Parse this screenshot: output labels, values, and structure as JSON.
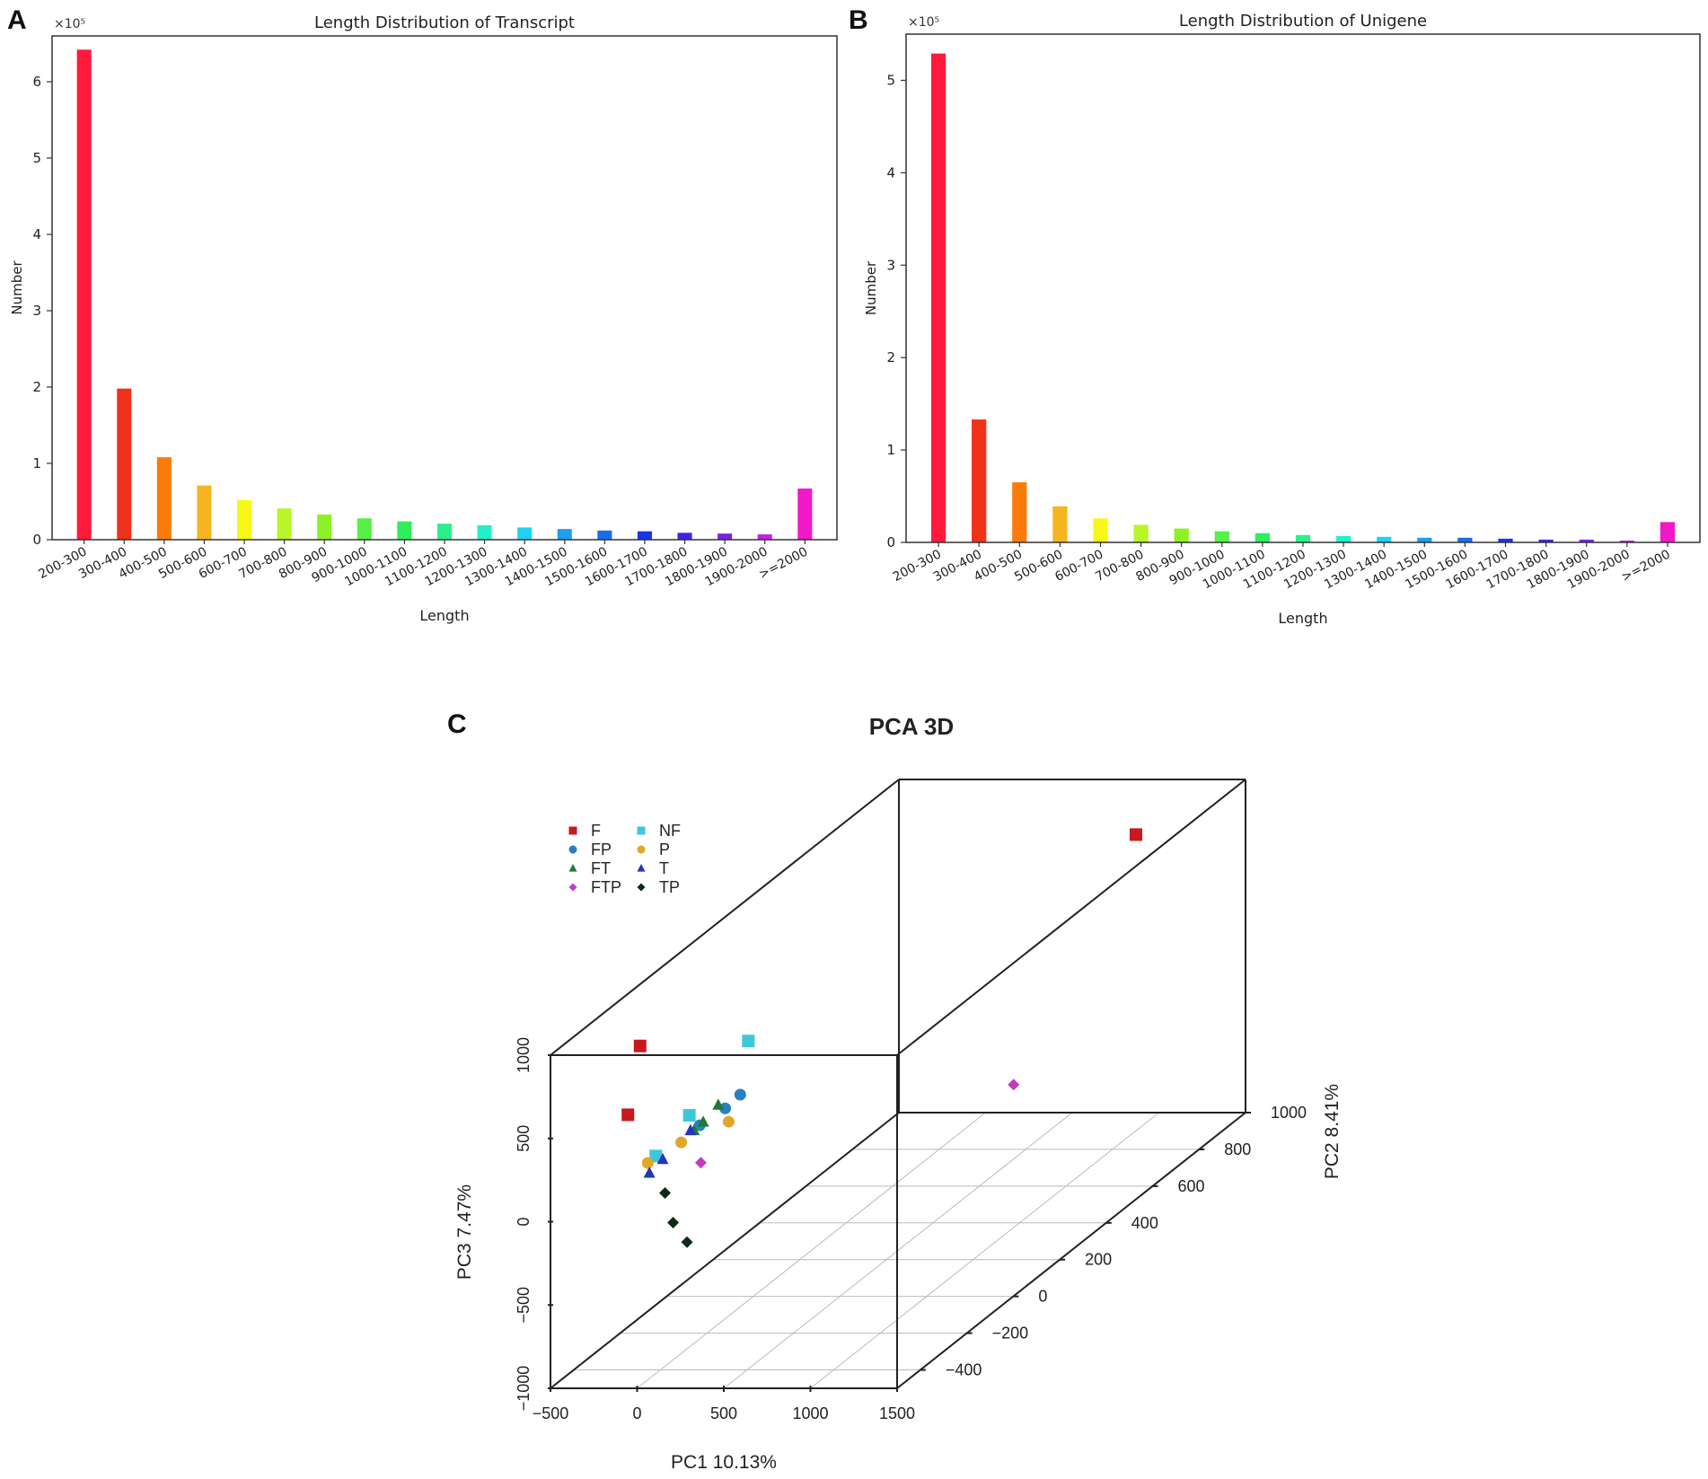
{
  "panels": {
    "a": "A",
    "b": "B",
    "c": "C"
  },
  "chart_data": [
    {
      "id": "transcript",
      "type": "bar",
      "title": "Length Distribution of Transcript",
      "xlabel": "Length",
      "ylabel": "Number",
      "multiplier": "×10⁵",
      "ylim": [
        0,
        6.6
      ],
      "yticks": [
        0,
        1,
        2,
        3,
        4,
        5,
        6
      ],
      "categories": [
        "200-300",
        "300-400",
        "400-500",
        "500-600",
        "600-700",
        "700-800",
        "800-900",
        "900-1000",
        "1000-1100",
        "1100-1200",
        "1200-1300",
        "1300-1400",
        "1400-1500",
        "1500-1600",
        "1600-1700",
        "1700-1800",
        "1800-1900",
        "1900-2000",
        ">=2000"
      ],
      "values": [
        6.42,
        1.98,
        1.08,
        0.71,
        0.52,
        0.41,
        0.33,
        0.28,
        0.24,
        0.21,
        0.19,
        0.16,
        0.14,
        0.12,
        0.11,
        0.09,
        0.08,
        0.07,
        0.67
      ],
      "colors": [
        "#ff1a3c",
        "#f0321a",
        "#fb7b0a",
        "#f6b51e",
        "#f8f818",
        "#b8f52a",
        "#8cf224",
        "#57f046",
        "#2fee5c",
        "#2cef8c",
        "#26eec8",
        "#1ed2f4",
        "#1e9ff0",
        "#1a6cee",
        "#1a35e6",
        "#4421e3",
        "#7a22e2",
        "#c024e6",
        "#f218c8"
      ]
    },
    {
      "id": "unigene",
      "type": "bar",
      "title": "Length Distribution of Unigene",
      "xlabel": "Length",
      "ylabel": "Number",
      "multiplier": "×10⁵",
      "ylim": [
        0,
        5.5
      ],
      "yticks": [
        0,
        1,
        2,
        3,
        4,
        5
      ],
      "categories": [
        "200-300",
        "300-400",
        "400-500",
        "500-600",
        "600-700",
        "700-800",
        "800-900",
        "900-1000",
        "1000-1100",
        "1100-1200",
        "1200-1300",
        "1300-1400",
        "1400-1500",
        "1500-1600",
        "1600-1700",
        "1700-1800",
        "1800-1900",
        "1900-2000",
        ">=2000"
      ],
      "values": [
        5.29,
        1.33,
        0.65,
        0.39,
        0.26,
        0.19,
        0.15,
        0.12,
        0.1,
        0.08,
        0.07,
        0.06,
        0.05,
        0.05,
        0.04,
        0.03,
        0.03,
        0.02,
        0.22
      ],
      "colors": [
        "#ff1a3c",
        "#f0321a",
        "#fb7b0a",
        "#f6b51e",
        "#f8f818",
        "#b8f52a",
        "#8cf224",
        "#57f046",
        "#2fee5c",
        "#2cef8c",
        "#26eec8",
        "#1ed2f4",
        "#1e9ff0",
        "#1a6cee",
        "#1a35e6",
        "#4421e3",
        "#7a22e2",
        "#c024e6",
        "#f218c8"
      ]
    },
    {
      "id": "pca",
      "type": "scatter",
      "title": "PCA 3D",
      "xlabel": "PC1 10.13%",
      "ylabel": "PC2 8.41%",
      "zlabel": "PC3 7.47%",
      "xlim": [
        -500,
        1500
      ],
      "ylim": [
        -500,
        1000
      ],
      "zlim": [
        -1000,
        1000
      ],
      "xticks": [
        -500,
        0,
        500,
        1000,
        1500
      ],
      "yticks": [
        -400,
        -200,
        0,
        200,
        400,
        600,
        800,
        1000
      ],
      "zticks": [
        -1000,
        -500,
        0,
        500,
        1000
      ],
      "tick_labels": {
        "x": [
          "−500",
          "0",
          "500",
          "1000",
          "1500"
        ],
        "y": [
          "−400",
          "−200",
          "0",
          "200",
          "400",
          "600",
          "800",
          "1000"
        ],
        "z": [
          "−1000",
          "−500",
          "0",
          "500",
          "1000"
        ]
      },
      "legend": [
        {
          "name": "F",
          "color": "#c8191e",
          "marker": "square"
        },
        {
          "name": "FP",
          "color": "#2a7fc0",
          "marker": "circle"
        },
        {
          "name": "FT",
          "color": "#1f7a33",
          "marker": "triangle"
        },
        {
          "name": "FTP",
          "color": "#c23cc2",
          "marker": "diamond"
        },
        {
          "name": "NF",
          "color": "#3cc8dc",
          "marker": "square"
        },
        {
          "name": "P",
          "color": "#e0a82a",
          "marker": "circle"
        },
        {
          "name": "T",
          "color": "#2236b8",
          "marker": "triangle"
        },
        {
          "name": "TP",
          "color": "#0f2a18",
          "marker": "diamond"
        }
      ],
      "series": [
        {
          "name": "F",
          "points": [
            [
              -80,
              -480,
              620
            ],
            [
              -50,
              -450,
              1000
            ],
            [
              1270,
              700,
              1000
            ]
          ]
        },
        {
          "name": "FP",
          "points": [
            [
              240,
              -300,
              460
            ],
            [
              120,
              -320,
              380
            ],
            [
              300,
              -280,
              520
            ]
          ]
        },
        {
          "name": "FT",
          "points": [
            [
              200,
              -300,
              480
            ],
            [
              100,
              -330,
              360
            ],
            [
              140,
              -320,
              400
            ]
          ]
        },
        {
          "name": "FTP",
          "points": [
            [
              180,
              -360,
              200
            ],
            [
              1100,
              300,
              -60
            ]
          ]
        },
        {
          "name": "NF",
          "points": [
            [
              320,
              -260,
              820
            ],
            [
              60,
              -320,
              440
            ],
            [
              -80,
              -360,
              240
            ]
          ]
        },
        {
          "name": "P",
          "points": [
            [
              260,
              -300,
              380
            ],
            [
              40,
              -340,
              300
            ],
            [
              -100,
              -380,
              220
            ]
          ]
        },
        {
          "name": "T",
          "points": [
            [
              80,
              -330,
              360
            ],
            [
              -40,
              -360,
              220
            ],
            [
              -90,
              -380,
              160
            ]
          ]
        },
        {
          "name": "TP",
          "points": [
            [
              0,
              -380,
              40
            ],
            [
              20,
              -360,
              -160
            ],
            [
              60,
              -330,
              -310
            ]
          ]
        }
      ]
    }
  ]
}
